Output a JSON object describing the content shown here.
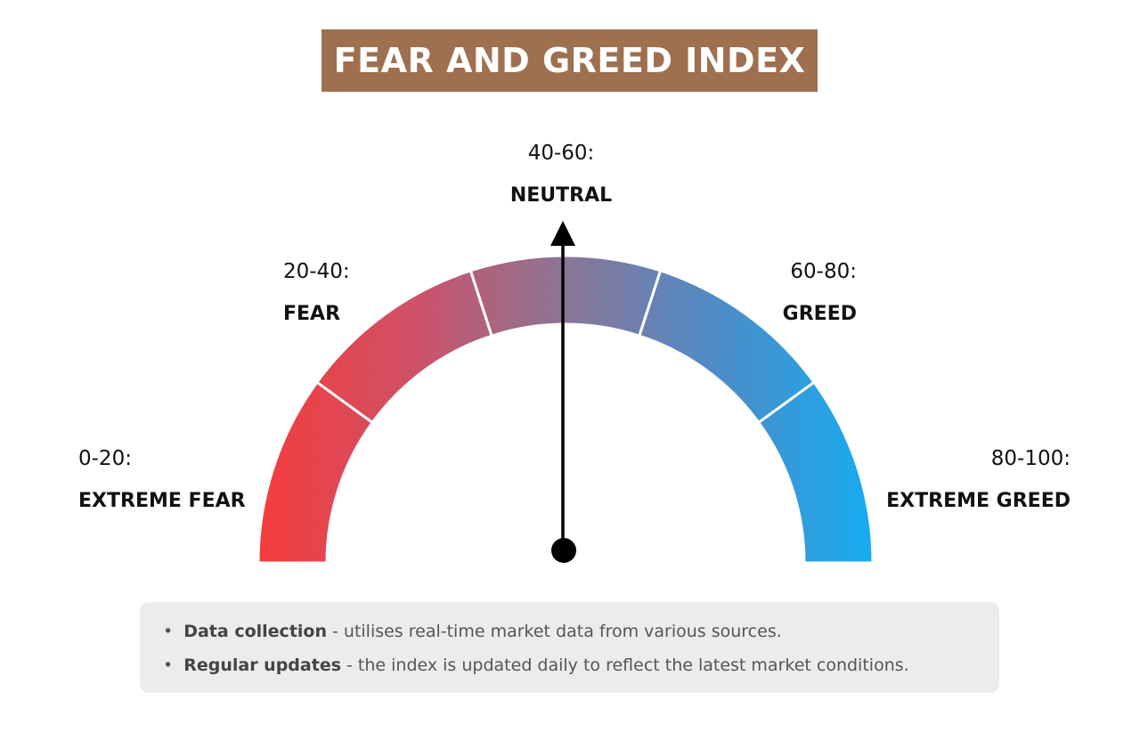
{
  "title": "FEAR AND GREED INDEX",
  "zones": [
    {
      "range": "0-20:",
      "label": "EXTREME FEAR"
    },
    {
      "range": "20-40:",
      "label": "FEAR"
    },
    {
      "range": "40-60:",
      "label": "NEUTRAL"
    },
    {
      "range": "60-80:",
      "label": "GREED"
    },
    {
      "range": "80-100:",
      "label": "EXTREME GREED"
    }
  ],
  "notes": [
    {
      "term": "Data collection",
      "text": "- utilises real-time market data from various sources."
    },
    {
      "term": "Regular updates",
      "text": "- the index is updated daily to reflect the latest market conditions."
    }
  ]
}
